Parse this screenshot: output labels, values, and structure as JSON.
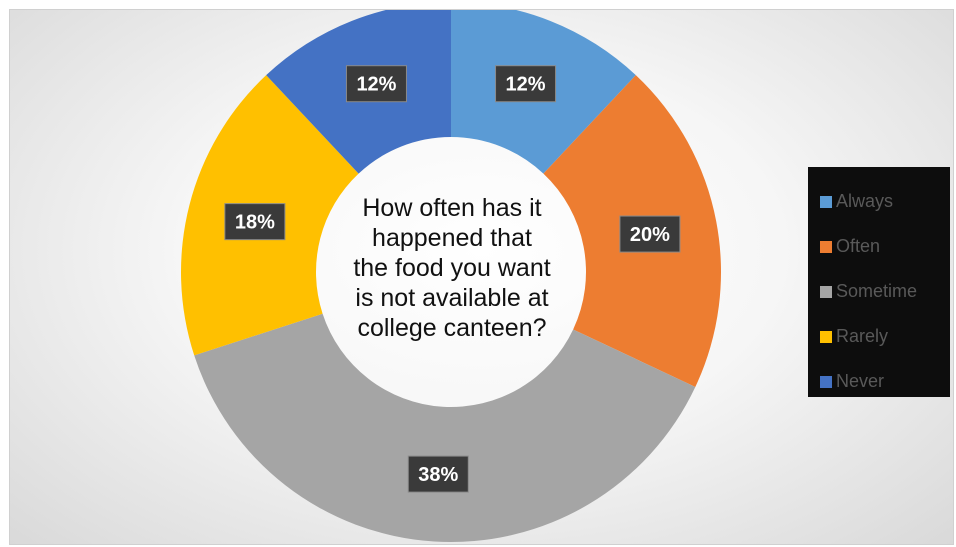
{
  "chart_data": {
    "type": "pie",
    "title": "How often has it happened that the food you want is not available at college canteen?",
    "title_lines": [
      "How often has it",
      "happened that",
      "the food you want",
      "is not available at",
      "college canteen?"
    ],
    "categories": [
      "Always",
      "Often",
      "Sometime",
      "Rarely",
      "Never"
    ],
    "values": [
      12,
      20,
      38,
      18,
      12
    ],
    "data_labels": [
      "12%",
      "20%",
      "38%",
      "18%",
      "12%"
    ],
    "colors": [
      "#5b9bd5",
      "#ed7d31",
      "#a5a5a5",
      "#ffc000",
      "#4472c4"
    ],
    "legend_position": "right",
    "style": "doughnut"
  }
}
